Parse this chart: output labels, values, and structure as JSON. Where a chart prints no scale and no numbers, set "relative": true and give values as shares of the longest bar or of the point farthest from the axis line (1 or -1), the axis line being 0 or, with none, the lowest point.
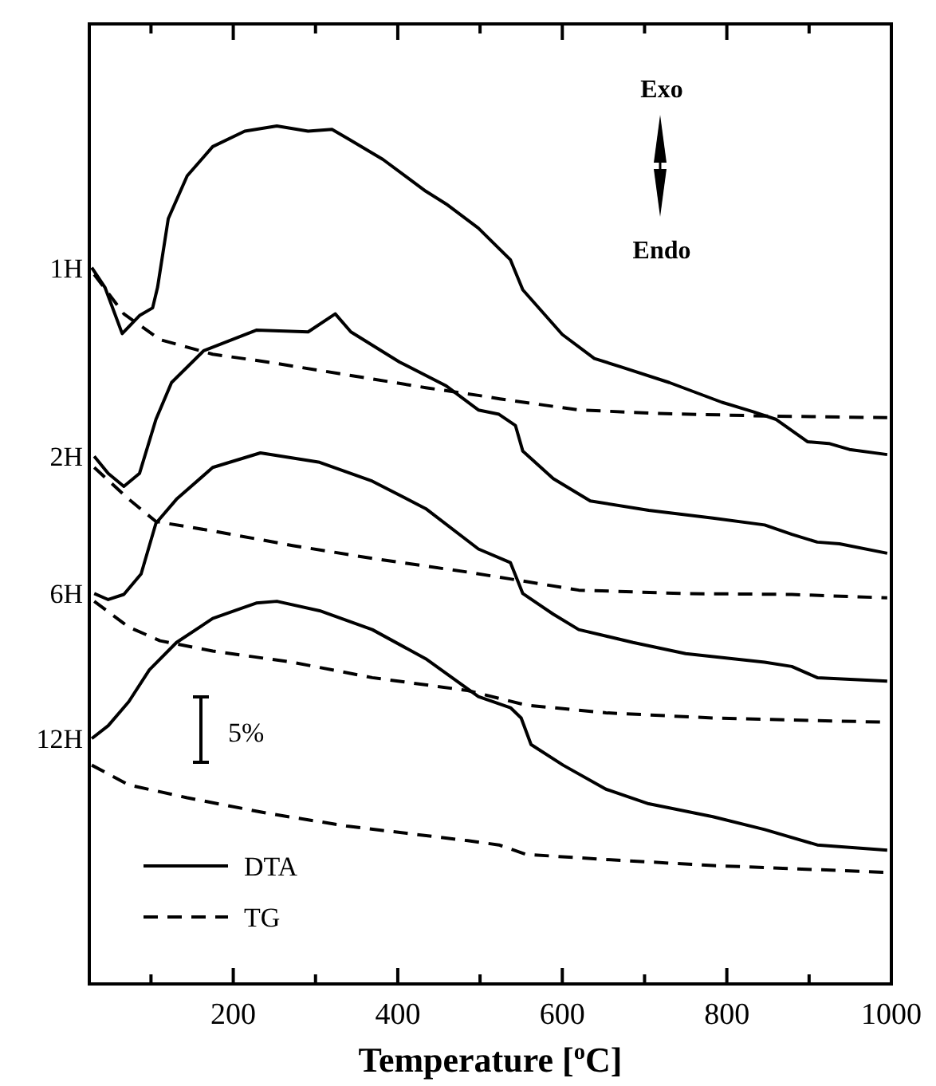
{
  "chart_data": {
    "type": "line",
    "relative": true,
    "xlabel": "Temperature [$^{o}$C]",
    "xlim": [
      25,
      1000
    ],
    "xticks": [
      {
        "value": 100,
        "label": null
      },
      200,
      {
        "value": 300,
        "label": null
      },
      400,
      {
        "value": 500,
        "label": null
      },
      600,
      {
        "value": 700,
        "label": null
      },
      800,
      {
        "value": 900,
        "label": null
      },
      1000
    ],
    "annotations": [
      "Exo",
      "Endo",
      "5%",
      "DTA",
      "TG"
    ],
    "series": [
      {
        "name": "1H",
        "color": "#000000",
        "line_style": "solid",
        "x": [
          28,
          44,
          65,
          86,
          102,
          108,
          121,
          144,
          175,
          214,
          253,
          291,
          320,
          340,
          382,
          434,
          459,
          498,
          537,
          552,
          600,
          639,
          672,
          730,
          794,
          832,
          860,
          898,
          924,
          949,
          995
        ],
        "values": [
          0.835,
          0.812,
          0.758,
          0.779,
          0.788,
          0.812,
          0.892,
          0.942,
          0.976,
          0.994,
          1,
          0.994,
          0.996,
          0.985,
          0.961,
          0.924,
          0.909,
          0.881,
          0.844,
          0.809,
          0.757,
          0.729,
          0.719,
          0.701,
          0.678,
          0.667,
          0.658,
          0.632,
          0.63,
          0.623,
          0.617
        ]
      },
      {
        "color": "#000000",
        "line_style": "dashed",
        "x": [
          31,
          67,
          111,
          175,
          241,
          338,
          434,
          498,
          524,
          620,
          717,
          846,
          995
        ],
        "values": [
          0.827,
          0.781,
          0.751,
          0.734,
          0.725,
          0.71,
          0.695,
          0.686,
          0.682,
          0.669,
          0.665,
          0.662,
          0.66
        ]
      },
      {
        "name": "2H",
        "color": "#000000",
        "line_style": "solid",
        "x": [
          31,
          48,
          67,
          86,
          106,
          125,
          164,
          228,
          291,
          324,
          343,
          402,
          459,
          498,
          523,
          543,
          552,
          589,
          634,
          705,
          783,
          846,
          879,
          910,
          937,
          995
        ],
        "values": [
          0.615,
          0.595,
          0.58,
          0.595,
          0.658,
          0.701,
          0.738,
          0.762,
          0.76,
          0.781,
          0.76,
          0.725,
          0.697,
          0.669,
          0.664,
          0.651,
          0.621,
          0.589,
          0.563,
          0.552,
          0.543,
          0.535,
          0.524,
          0.515,
          0.513,
          0.502
        ]
      },
      {
        "color": "#000000",
        "line_style": "dashed",
        "x": [
          31,
          73,
          106,
          175,
          272,
          369,
          485,
          537,
          620,
          750,
          879,
          995
        ],
        "values": [
          0.602,
          0.565,
          0.539,
          0.528,
          0.511,
          0.496,
          0.48,
          0.472,
          0.459,
          0.455,
          0.454,
          0.45
        ]
      },
      {
        "name": "6H",
        "color": "#000000",
        "line_style": "solid",
        "x": [
          31,
          48,
          67,
          88,
          106,
          131,
          175,
          233,
          305,
          369,
          434,
          498,
          537,
          552,
          589,
          620,
          686,
          750,
          846,
          879,
          910,
          995
        ],
        "values": [
          0.455,
          0.448,
          0.454,
          0.478,
          0.537,
          0.565,
          0.602,
          0.619,
          0.608,
          0.586,
          0.554,
          0.507,
          0.491,
          0.455,
          0.431,
          0.413,
          0.398,
          0.385,
          0.375,
          0.37,
          0.357,
          0.353
        ]
      },
      {
        "color": "#000000",
        "line_style": "dashed",
        "x": [
          31,
          73,
          111,
          175,
          272,
          369,
          485,
          556,
          653,
          783,
          995
        ],
        "values": [
          0.446,
          0.416,
          0.4,
          0.388,
          0.375,
          0.357,
          0.342,
          0.325,
          0.316,
          0.31,
          0.305
        ]
      },
      {
        "name": "12H",
        "color": "#000000",
        "line_style": "solid",
        "x": [
          28,
          48,
          73,
          98,
          131,
          175,
          228,
          253,
          305,
          369,
          434,
          498,
          537,
          550,
          562,
          601,
          653,
          705,
          783,
          846,
          910,
          995
        ],
        "values": [
          0.286,
          0.301,
          0.329,
          0.366,
          0.398,
          0.426,
          0.444,
          0.446,
          0.435,
          0.413,
          0.379,
          0.335,
          0.322,
          0.31,
          0.279,
          0.255,
          0.227,
          0.21,
          0.195,
          0.18,
          0.162,
          0.156
        ]
      },
      {
        "color": "#000000",
        "line_style": "dashed",
        "x": [
          28,
          73,
          144,
          241,
          338,
          485,
          523,
          556,
          653,
          783,
          995
        ],
        "values": [
          0.255,
          0.232,
          0.217,
          0.199,
          0.184,
          0.167,
          0.162,
          0.151,
          0.145,
          0.138,
          0.13
        ]
      }
    ]
  }
}
